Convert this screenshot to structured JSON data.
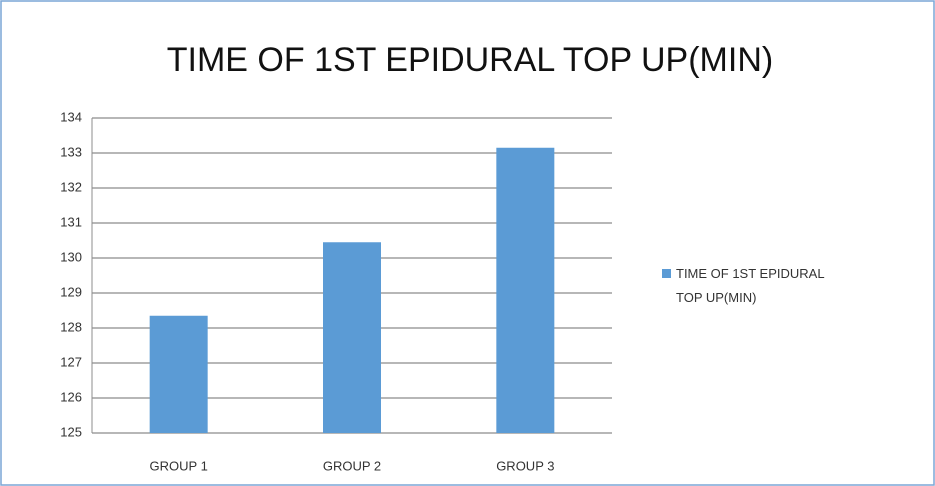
{
  "chart_data": {
    "type": "bar",
    "title": "TIME OF 1ST EPIDURAL TOP UP(MIN)",
    "categories": [
      "GROUP 1",
      "GROUP 2",
      "GROUP 3"
    ],
    "series": [
      {
        "name": "TIME OF 1ST EPIDURAL TOP UP(MIN)",
        "color": "#5b9bd5",
        "values": [
          128.35,
          130.45,
          133.15
        ]
      }
    ],
    "ylim": [
      125,
      134
    ],
    "yticks": [
      125,
      126,
      127,
      128,
      129,
      130,
      131,
      132,
      133,
      134
    ],
    "grid": true,
    "legend": "right"
  }
}
